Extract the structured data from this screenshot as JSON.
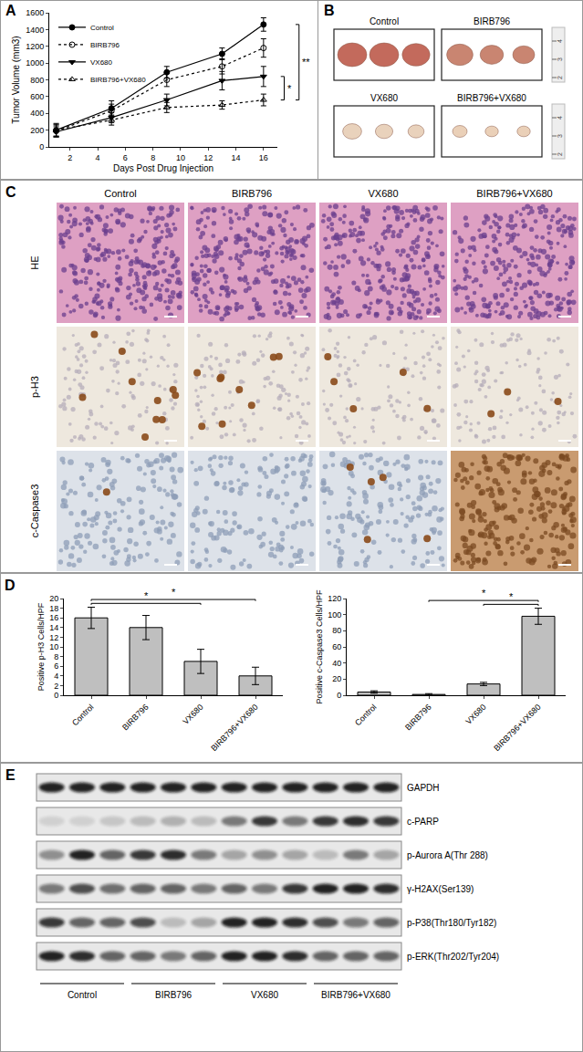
{
  "panel_labels": [
    "A",
    "B",
    "C",
    "D",
    "E"
  ],
  "chart_data": [
    {
      "type": "line",
      "x_label": "Days Post Drug Injection",
      "y_label": "Tumor Volume (mm3)",
      "x": [
        1,
        5,
        9,
        13,
        16
      ],
      "xlim": [
        0.5,
        17
      ],
      "xticks": [
        2,
        4,
        6,
        8,
        10,
        12,
        14,
        16
      ],
      "ylim": [
        0,
        1600
      ],
      "yticks": [
        0,
        200,
        400,
        600,
        800,
        1000,
        1200,
        1400,
        1600
      ],
      "grid": false,
      "legend": "top-left",
      "series": [
        {
          "name": "Control",
          "color": "#000000",
          "marker": "circle",
          "line_style": "solid",
          "values": [
            200,
            460,
            890,
            1110,
            1460
          ],
          "errors": [
            80,
            90,
            70,
            70,
            80
          ]
        },
        {
          "name": "BIRB796",
          "color": "#000000",
          "marker": "circle-open",
          "line_style": "dotted",
          "values": [
            190,
            430,
            800,
            960,
            1180
          ],
          "errors": [
            70,
            80,
            80,
            90,
            110
          ]
        },
        {
          "name": "VX680",
          "color": "#000000",
          "marker": "triangle-down",
          "line_style": "solid",
          "values": [
            180,
            350,
            560,
            790,
            840
          ],
          "errors": [
            60,
            60,
            70,
            110,
            120
          ]
        },
        {
          "name": "BIRB796+VX680",
          "color": "#000000",
          "marker": "triangle-up-open",
          "line_style": "dotted",
          "values": [
            200,
            320,
            470,
            500,
            560
          ],
          "errors": [
            70,
            60,
            60,
            50,
            70
          ]
        }
      ],
      "annotations": [
        {
          "text": "*",
          "between": [
            "VX680",
            "BIRB796+VX680"
          ]
        },
        {
          "text": "**",
          "between": [
            "Control",
            "BIRB796+VX680"
          ]
        }
      ]
    },
    {
      "type": "bar",
      "y_label": "Positive p-H3 Cells/HPF",
      "categories": [
        "Control",
        "BIRB796",
        "VX680",
        "BIRB796+VX680"
      ],
      "values": [
        16,
        14,
        7,
        4
      ],
      "errors": [
        2.2,
        2.5,
        2.5,
        1.8
      ],
      "color": "#bfbfbf",
      "ylim": [
        0,
        20
      ],
      "yticks": [
        0,
        2,
        4,
        6,
        8,
        10,
        12,
        14,
        16,
        18,
        20
      ],
      "grid": false,
      "annotations": [
        {
          "text": "*",
          "between": [
            "Control",
            "VX680"
          ]
        },
        {
          "text": "*",
          "between": [
            "Control",
            "BIRB796+VX680"
          ]
        }
      ]
    },
    {
      "type": "bar",
      "y_label": "Positive c-Caspase3 Cells/HPF",
      "categories": [
        "Control",
        "BIRB796",
        "VX680",
        "BIRB796+VX680"
      ],
      "values": [
        4,
        1,
        14,
        98
      ],
      "errors": [
        1.5,
        1,
        2,
        10
      ],
      "color": "#bfbfbf",
      "ylim": [
        0,
        120
      ],
      "yticks": [
        0,
        20,
        40,
        60,
        80,
        100,
        120
      ],
      "grid": false,
      "annotations": [
        {
          "text": "*",
          "between": [
            "VX680",
            "BIRB796+VX680"
          ]
        },
        {
          "text": "*",
          "between": [
            "BIRB796",
            "BIRB796+VX680"
          ]
        }
      ]
    }
  ],
  "tumor_photos": {
    "groups": [
      {
        "name": "Control",
        "sizes": [
          1.0,
          1.0,
          0.95
        ]
      },
      {
        "name": "BIRB796",
        "sizes": [
          0.9,
          0.8,
          0.75
        ]
      },
      {
        "name": "VX680",
        "sizes": [
          0.65,
          0.6,
          0.55
        ]
      },
      {
        "name": "BIRB796+VX680",
        "sizes": [
          0.5,
          0.45,
          0.45
        ]
      }
    ],
    "ruler_labels": [
      "2",
      "3",
      "4"
    ]
  },
  "histology": {
    "columns": [
      "Control",
      "BIRB796",
      "VX680",
      "BIRB796+VX680"
    ],
    "rows": [
      "HE",
      "p-H3",
      "c-Caspase3"
    ]
  },
  "western_blot": {
    "groups": [
      "Control",
      "BIRB796",
      "VX680",
      "BIRB796+VX680"
    ],
    "lanes_per_group": 3,
    "rows": [
      {
        "label": "GAPDH",
        "intensities": [
          0.9,
          0.9,
          0.9,
          0.9,
          0.9,
          0.9,
          0.9,
          0.9,
          0.9,
          0.9,
          0.9,
          0.9
        ]
      },
      {
        "label": "c-PARP",
        "intensities": [
          0.1,
          0.1,
          0.15,
          0.2,
          0.25,
          0.2,
          0.5,
          0.8,
          0.5,
          0.8,
          0.85,
          0.8
        ]
      },
      {
        "label": "p-Aurora A(Thr 288)",
        "intensities": [
          0.4,
          0.9,
          0.6,
          0.8,
          0.85,
          0.5,
          0.3,
          0.4,
          0.3,
          0.2,
          0.5,
          0.3
        ]
      },
      {
        "label": "γ-H2AX(Ser139)",
        "intensities": [
          0.5,
          0.7,
          0.55,
          0.6,
          0.6,
          0.5,
          0.6,
          0.5,
          0.8,
          0.9,
          0.9,
          0.85
        ]
      },
      {
        "label": "p-P38(Thr180/Tyr182)",
        "intensities": [
          0.8,
          0.6,
          0.6,
          0.7,
          0.2,
          0.3,
          0.9,
          0.9,
          0.85,
          0.7,
          0.5,
          0.6
        ]
      },
      {
        "label": "p-ERK(Thr202/Tyr204)",
        "intensities": [
          0.9,
          0.85,
          0.6,
          0.6,
          0.5,
          0.6,
          0.9,
          0.9,
          0.85,
          0.6,
          0.6,
          0.6
        ]
      }
    ]
  }
}
